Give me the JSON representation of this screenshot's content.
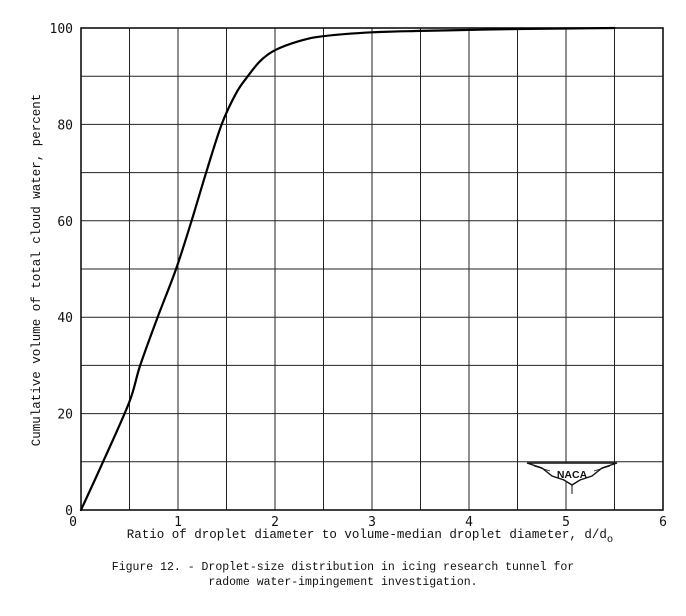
{
  "chart_data": {
    "type": "line",
    "title": "Figure 12. - Droplet-size distribution in icing research tunnel for radome water-impingement investigation.",
    "xlabel": "Ratio of droplet diameter to volume-median droplet diameter, d/d",
    "xlabel_subscript": "o",
    "ylabel": "Cumulative volume of total cloud water, percent",
    "xlim": [
      0,
      6
    ],
    "ylim": [
      0,
      100
    ],
    "x_ticks": [
      "0",
      "1",
      "2",
      "3",
      "4",
      "5",
      "6"
    ],
    "y_ticks": [
      "0",
      "20",
      "40",
      "60",
      "80",
      "100"
    ],
    "grid": true,
    "grid_x_step": 0.5,
    "grid_y_step": 10,
    "legend": null,
    "series": [
      {
        "name": "Cumulative volume",
        "x": [
          0,
          0.25,
          0.5,
          0.61,
          0.79,
          0.98,
          1.14,
          1.29,
          1.45,
          1.6,
          1.72,
          1.85,
          2.0,
          2.25,
          2.5,
          3.0,
          3.5,
          4.0,
          4.5,
          5.0,
          5.5
        ],
        "y": [
          0,
          11,
          22.5,
          30,
          40,
          50,
          60,
          70,
          80,
          86.5,
          90,
          93.2,
          95.4,
          97.3,
          98.3,
          99.1,
          99.4,
          99.6,
          99.8,
          99.9,
          100
        ]
      }
    ],
    "annotations": [
      "NACA"
    ]
  },
  "caption": {
    "line1": "Figure 12. - Droplet-size distribution in icing research tunnel for",
    "line2": "radome water-impingement investigation."
  },
  "logo": {
    "text": "NACA"
  }
}
